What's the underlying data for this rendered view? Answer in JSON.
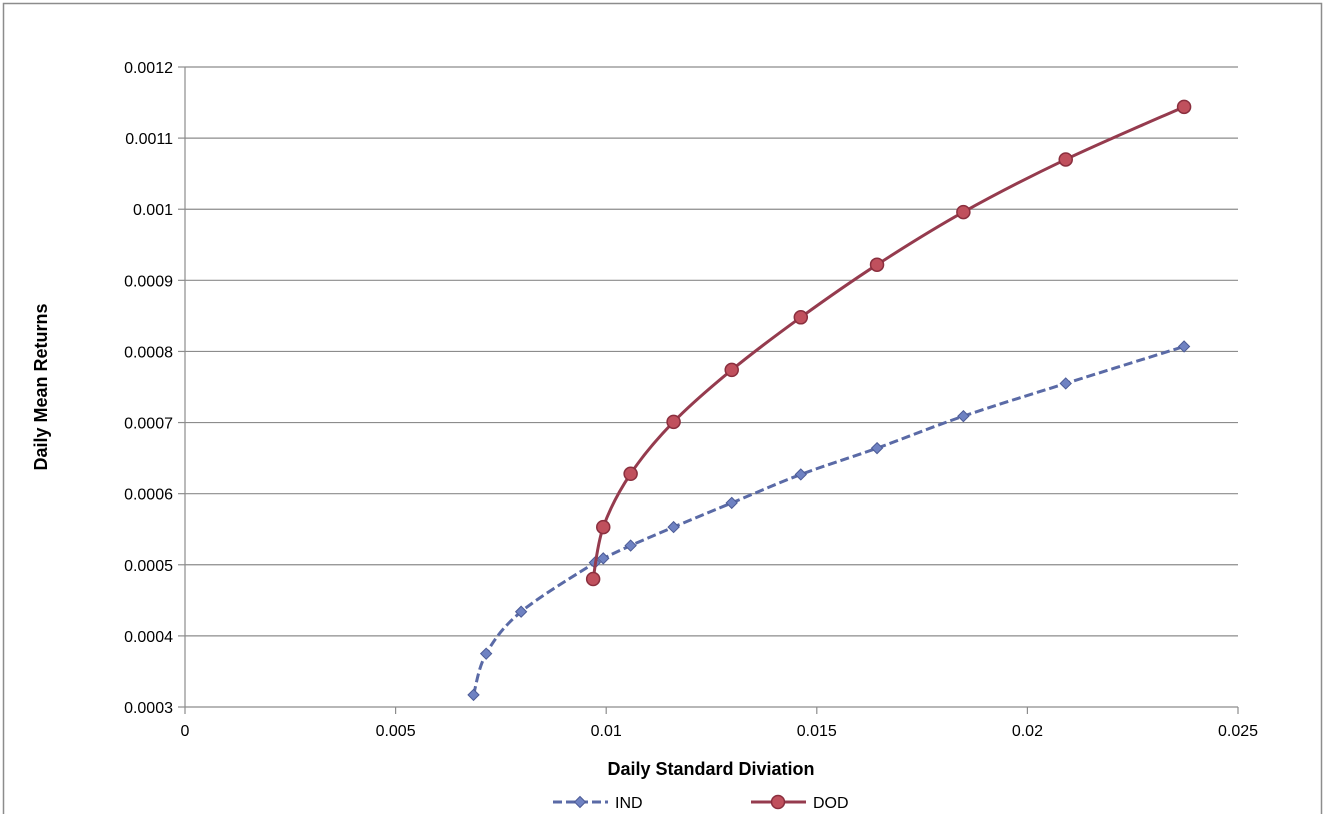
{
  "chart_data": {
    "type": "line",
    "title": "",
    "xlabel": "Daily Standard Diviation",
    "ylabel": "Daily  Mean  Returns",
    "xlim": [
      0,
      0.025
    ],
    "ylim": [
      0.0003,
      0.0012
    ],
    "x_ticks": [
      "0",
      "0.005",
      "0.01",
      "0.015",
      "0.02",
      "0.025"
    ],
    "y_ticks": [
      "0.0003",
      "0.0004",
      "0.0005",
      "0.0006",
      "0.0007",
      "0.0008",
      "0.0009",
      "0.001",
      "0.0011",
      "0.0012"
    ],
    "grid": "horizontal",
    "legend_position": "bottom",
    "series": [
      {
        "name": "IND",
        "color": "#5a6aa6",
        "line_style": "dashed",
        "marker": "diamond",
        "points": [
          [
            0.00685,
            0.000317
          ],
          [
            0.00715,
            0.000375
          ],
          [
            0.00798,
            0.000434
          ],
          [
            0.00973,
            0.000503
          ],
          [
            0.00993,
            0.000509
          ],
          [
            0.01058,
            0.000527
          ],
          [
            0.0116,
            0.000553
          ],
          [
            0.01298,
            0.000587
          ],
          [
            0.01462,
            0.000627
          ],
          [
            0.01643,
            0.000664
          ],
          [
            0.01848,
            0.000709
          ],
          [
            0.02091,
            0.000755
          ],
          [
            0.02372,
            0.000807
          ]
        ]
      },
      {
        "name": "DOD",
        "color": "#953b4e",
        "line_style": "solid",
        "marker": "circle",
        "points": [
          [
            0.00969,
            0.00048
          ],
          [
            0.00993,
            0.000553
          ],
          [
            0.01058,
            0.000628
          ],
          [
            0.0116,
            0.000701
          ],
          [
            0.01298,
            0.000774
          ],
          [
            0.01462,
            0.000848
          ],
          [
            0.01643,
            0.000922
          ],
          [
            0.01848,
            0.000996
          ],
          [
            0.02091,
            0.00107
          ],
          [
            0.02372,
            0.001144
          ]
        ]
      }
    ]
  }
}
